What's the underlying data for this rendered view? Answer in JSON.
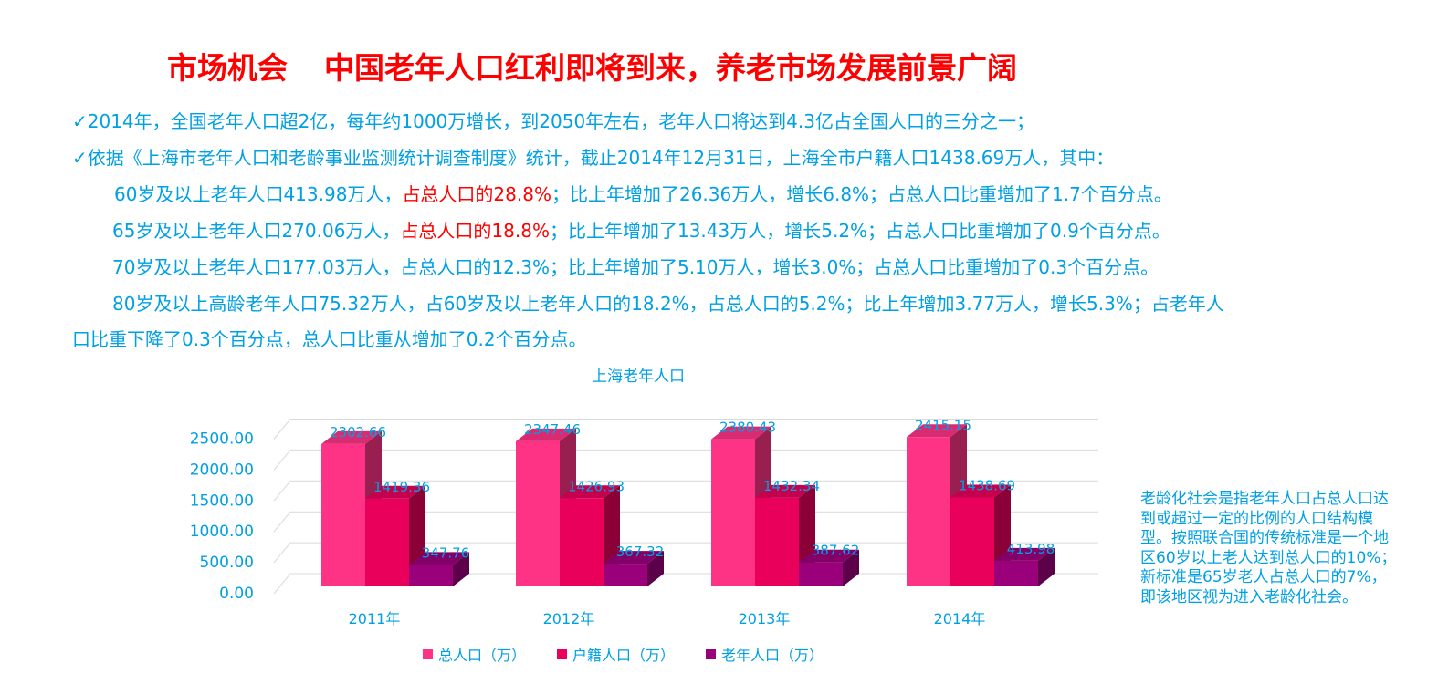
{
  "header": {
    "section": "市场机会",
    "title": "中国老年人口红利即将到来，养老市场发展前景广阔"
  },
  "body": {
    "line1": "✓2014年，全国老年人口超2亿，每年约1000万增长，到2050年左右，老年人口将达到4.3亿占全国人口的三分之一；",
    "line2": "✓依据《上海市老年人口和老龄事业监测统计调查制度》统计，截止2014年12月31日，上海全市户籍人口1438.69万人，其中：",
    "line3a": "60岁及以上老年人口413.98万人，",
    "line3b": "占总人口的28.8%",
    "line3c": "；比上年增加了26.36万人，增长6.8%；占总人口比重增加了1.7个百分点。",
    "line4a": "65岁及以上老年人口270.06万人，",
    "line4b": "占总人口的18.8%",
    "line4c": "；比上年增加了13.43万人，增长5.2%；占总人口比重增加了0.9个百分点。",
    "line5": "70岁及以上老年人口177.03万人，占总人口的12.3%；比上年增加了5.10万人，增长3.0%；占总人口比重增加了0.3个百分点。",
    "line6": "80岁及以上高龄老年人口75.32万人，占60岁及以上老年人口的18.2%，占总人口的5.2%；比上年增加3.77万人，增长5.3%；占老年人",
    "line7": "口比重下降了0.3个百分点，总人口比重从增加了0.2个百分点。"
  },
  "note": "老龄化社会是指老年人口占总人口达到或超过一定的比例的人口结构模型。按照联合国的传统标准是一个地区60岁以上老人达到总人口的10%；新标准是65岁老人占总人口的7%，即该地区视为进入老龄化社会。",
  "chart_data": {
    "type": "bar",
    "title": "上海老年人口",
    "categories": [
      "2011年",
      "2012年",
      "2013年",
      "2014年"
    ],
    "series": [
      {
        "name": "总人口（万）",
        "values": [
          2302.66,
          2347.46,
          2380.43,
          2415.15
        ],
        "labels": [
          "2302.66",
          "2347.46",
          "2380.43",
          "2415.15"
        ],
        "color": "#ff3385"
      },
      {
        "name": "户籍人口（万）",
        "values": [
          1419.36,
          1426.93,
          1432.34,
          1438.69
        ],
        "labels": [
          "1419.36",
          "1426.93",
          "1432.34",
          "1438.69"
        ],
        "color": "#e8005a"
      },
      {
        "name": "老年人口（万）",
        "values": [
          347.76,
          367.32,
          387.62,
          413.98
        ],
        "labels": [
          "347.76",
          "367.32",
          "387.62",
          "413.98"
        ],
        "color": "#99007a"
      }
    ],
    "yticks": [
      "0.00",
      "500.00",
      "1000.00",
      "1500.00",
      "2000.00",
      "2500.00"
    ],
    "ylim": [
      0,
      2500
    ],
    "legend": "bottom",
    "grid": true,
    "style": "3d"
  },
  "colors": {
    "text": "#00a0e3",
    "highlight": "#ff0000"
  }
}
